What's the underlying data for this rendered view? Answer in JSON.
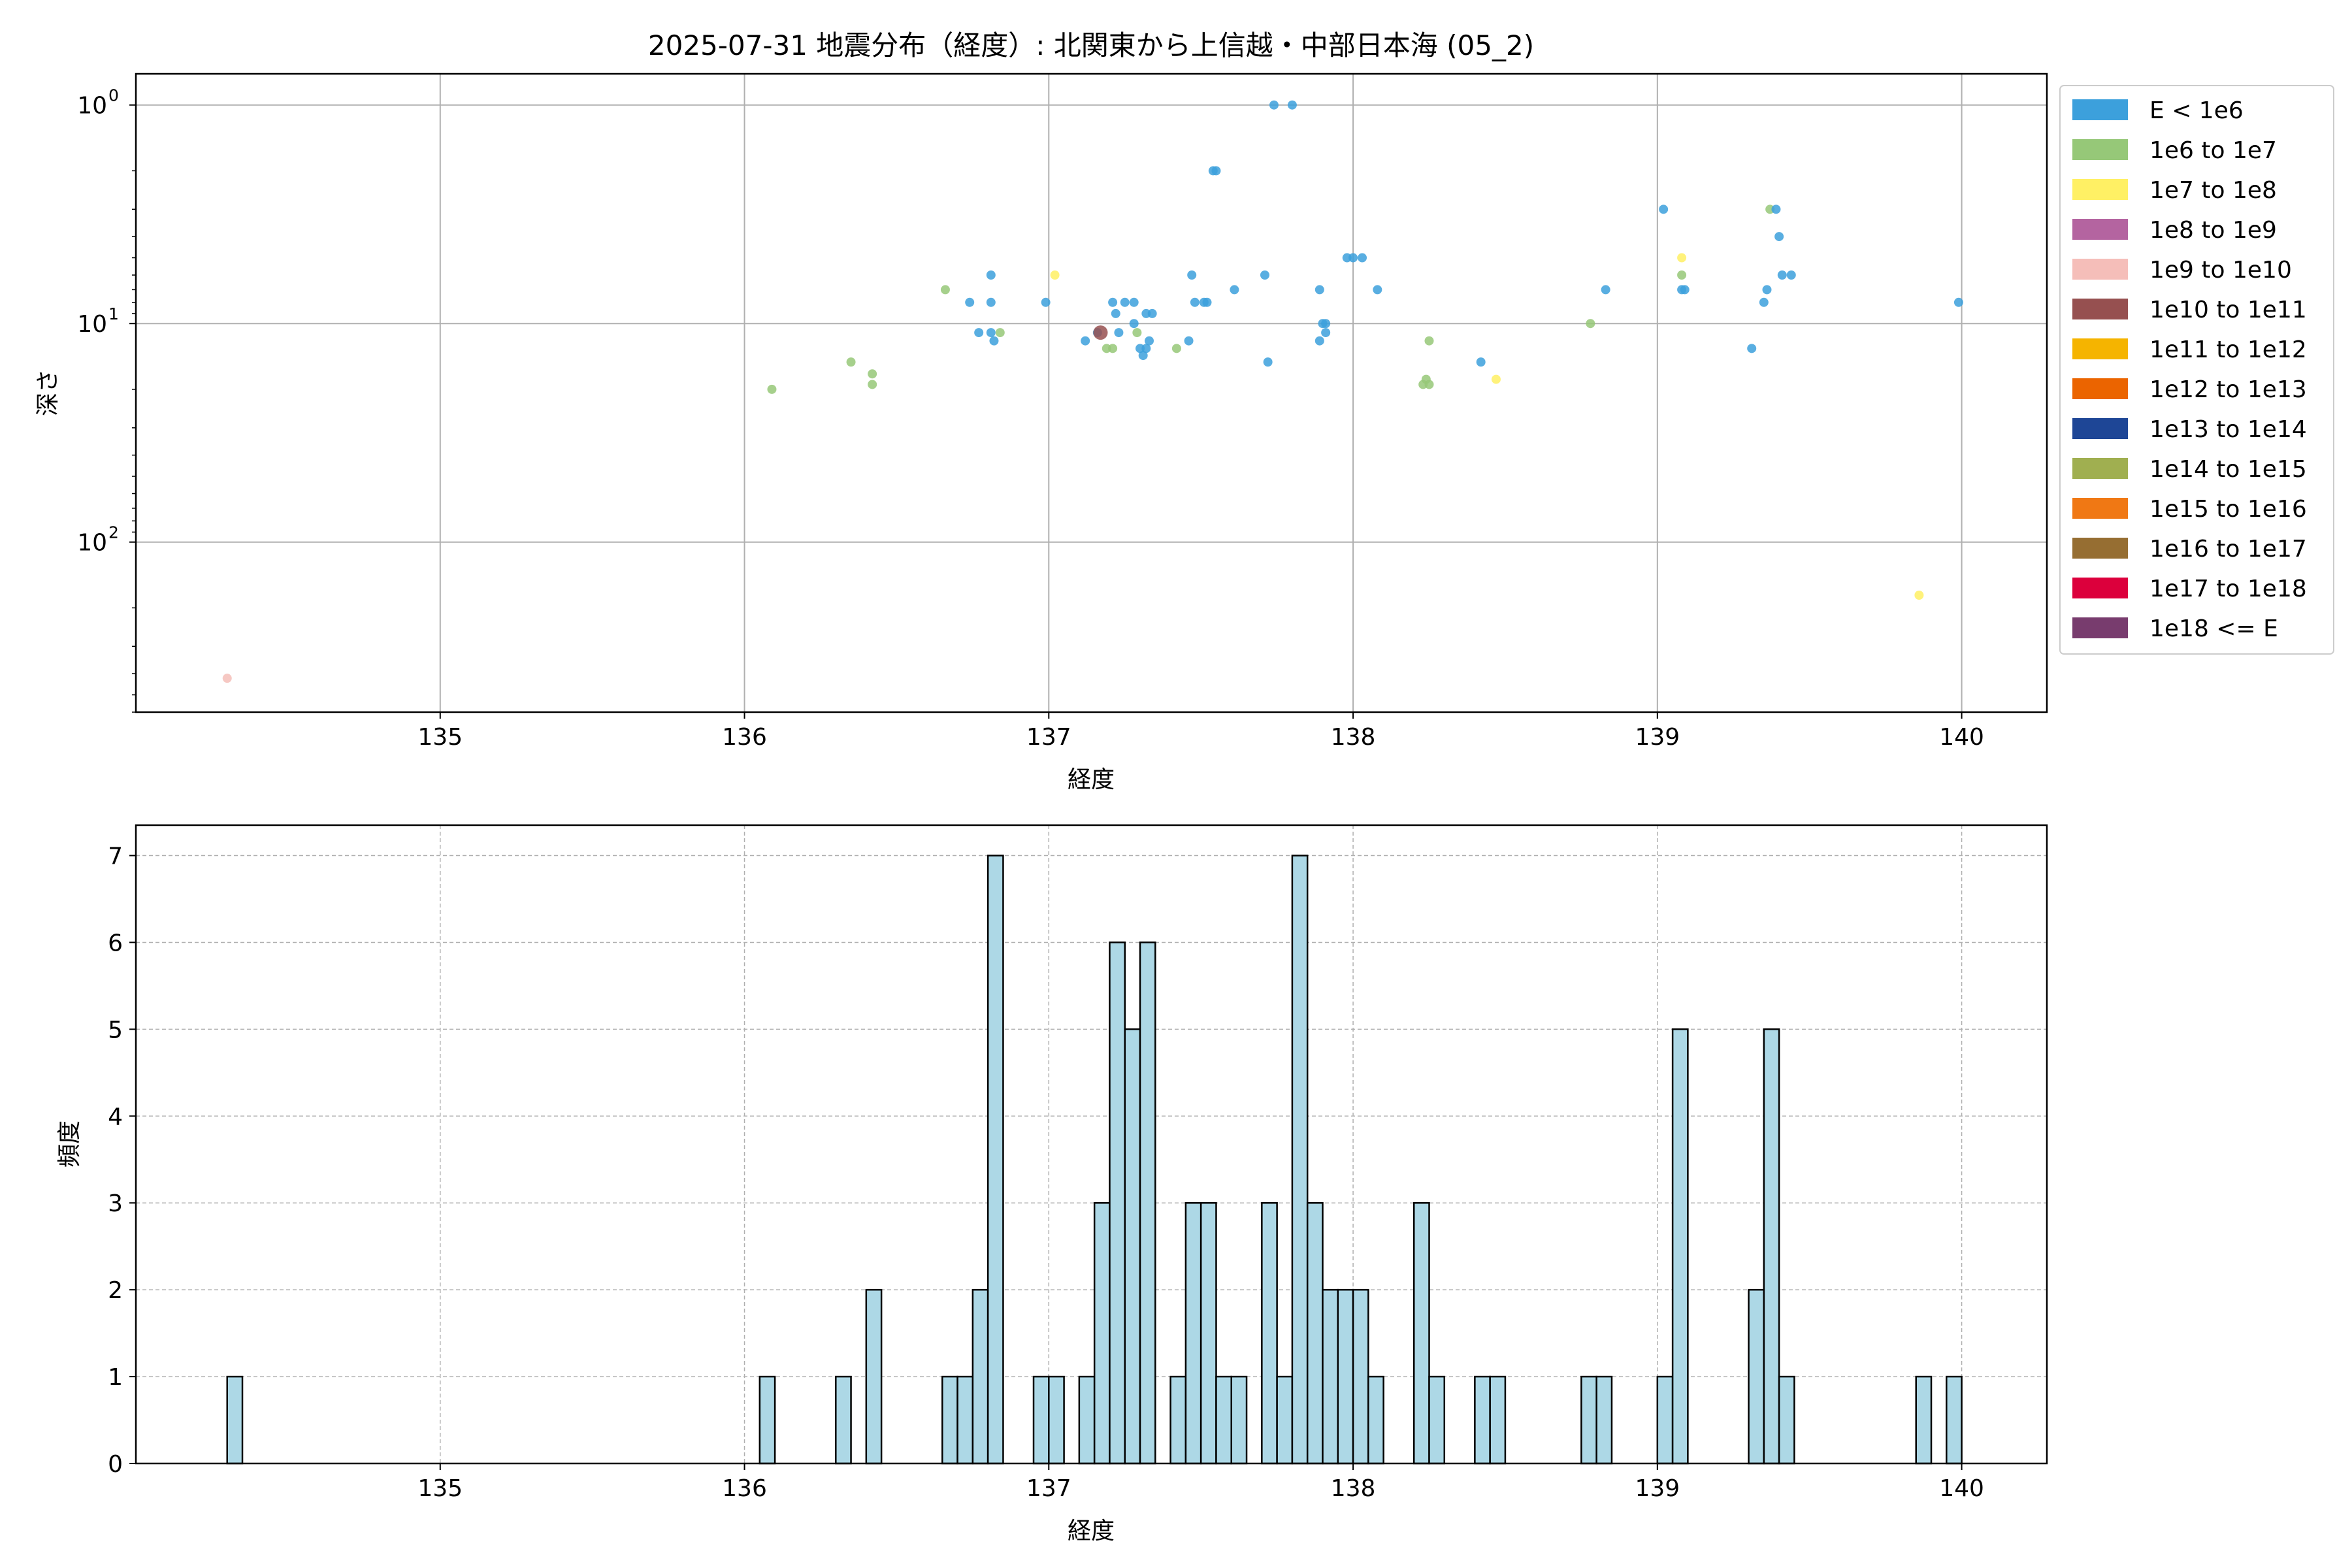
{
  "figure": {
    "title": "2025-07-31 地震分布（経度）: 北関東から上信越・中部日本海 (05_2)"
  },
  "chart_data": [
    {
      "type": "scatter",
      "xlabel": "経度",
      "ylabel": "深さ",
      "xlim": [
        134.0,
        140.28
      ],
      "yscale": "log",
      "yinverted": true,
      "ylim": [
        0.72,
        600
      ],
      "xticks": [
        135,
        136,
        137,
        138,
        139,
        140
      ],
      "xtick_labels": [
        "135",
        "136",
        "137",
        "138",
        "139",
        "140"
      ],
      "yticks": [
        1,
        10,
        100
      ],
      "ytick_labels": [
        "10",
        "10",
        "10"
      ],
      "ytick_exponents": [
        "0",
        "1",
        "2"
      ],
      "grid": true,
      "legend_position": "outside-right",
      "legend": [
        {
          "label": "E < 1e6",
          "color": "#3ca0dc"
        },
        {
          "label": "1e6 to 1e7",
          "color": "#96c878"
        },
        {
          "label": "1e7 to 1e8",
          "color": "#fff064"
        },
        {
          "label": "1e8 to 1e9",
          "color": "#b464a0"
        },
        {
          "label": "1e9 to 1e10",
          "color": "#f5beb9"
        },
        {
          "label": "1e10 to 1e11",
          "color": "#965050"
        },
        {
          "label": "1e11 to 1e12",
          "color": "#f5b400"
        },
        {
          "label": "1e12 to 1e13",
          "color": "#eb6400"
        },
        {
          "label": "1e13 to 1e14",
          "color": "#1e4696"
        },
        {
          "label": "1e14 to 1e15",
          "color": "#a0af50"
        },
        {
          "label": "1e15 to 1e16",
          "color": "#f07814"
        },
        {
          "label": "1e16 to 1e17",
          "color": "#966e32"
        },
        {
          "label": "1e17 to 1e18",
          "color": "#dc003c"
        },
        {
          "label": "1e18 <= E",
          "color": "#783c6e"
        }
      ],
      "points": [
        {
          "x": 134.3,
          "y": 420,
          "c": 4
        },
        {
          "x": 136.09,
          "y": 20,
          "c": 1
        },
        {
          "x": 136.35,
          "y": 15,
          "c": 1
        },
        {
          "x": 136.42,
          "y": 17,
          "c": 1
        },
        {
          "x": 136.42,
          "y": 19,
          "c": 1
        },
        {
          "x": 136.66,
          "y": 7,
          "c": 1
        },
        {
          "x": 136.74,
          "y": 8,
          "c": 0
        },
        {
          "x": 136.77,
          "y": 11,
          "c": 0
        },
        {
          "x": 136.81,
          "y": 6,
          "c": 0
        },
        {
          "x": 136.81,
          "y": 8,
          "c": 0
        },
        {
          "x": 136.81,
          "y": 11,
          "c": 0
        },
        {
          "x": 136.82,
          "y": 12,
          "c": 0
        },
        {
          "x": 136.84,
          "y": 11,
          "c": 1
        },
        {
          "x": 136.99,
          "y": 8,
          "c": 0
        },
        {
          "x": 137.02,
          "y": 6,
          "c": 2
        },
        {
          "x": 137.12,
          "y": 12,
          "c": 0
        },
        {
          "x": 137.16,
          "y": 11,
          "c": 0
        },
        {
          "x": 137.17,
          "y": 11,
          "c": 5
        },
        {
          "x": 137.19,
          "y": 13,
          "c": 1
        },
        {
          "x": 137.21,
          "y": 13,
          "c": 1
        },
        {
          "x": 137.21,
          "y": 8,
          "c": 0
        },
        {
          "x": 137.22,
          "y": 9,
          "c": 0
        },
        {
          "x": 137.23,
          "y": 11,
          "c": 0
        },
        {
          "x": 137.25,
          "y": 8,
          "c": 0
        },
        {
          "x": 137.28,
          "y": 8,
          "c": 0
        },
        {
          "x": 137.28,
          "y": 10,
          "c": 0
        },
        {
          "x": 137.29,
          "y": 11,
          "c": 1
        },
        {
          "x": 137.3,
          "y": 13,
          "c": 0
        },
        {
          "x": 137.31,
          "y": 14,
          "c": 0
        },
        {
          "x": 137.32,
          "y": 9,
          "c": 0
        },
        {
          "x": 137.32,
          "y": 13,
          "c": 0
        },
        {
          "x": 137.33,
          "y": 12,
          "c": 0
        },
        {
          "x": 137.34,
          "y": 9,
          "c": 0
        },
        {
          "x": 137.42,
          "y": 13,
          "c": 1
        },
        {
          "x": 137.46,
          "y": 12,
          "c": 0
        },
        {
          "x": 137.47,
          "y": 6,
          "c": 0
        },
        {
          "x": 137.48,
          "y": 8,
          "c": 0
        },
        {
          "x": 137.51,
          "y": 8,
          "c": 0
        },
        {
          "x": 137.52,
          "y": 8,
          "c": 0
        },
        {
          "x": 137.54,
          "y": 2,
          "c": 0
        },
        {
          "x": 137.55,
          "y": 2,
          "c": 0
        },
        {
          "x": 137.61,
          "y": 7,
          "c": 0
        },
        {
          "x": 137.71,
          "y": 6,
          "c": 0
        },
        {
          "x": 137.72,
          "y": 15,
          "c": 0
        },
        {
          "x": 137.74,
          "y": 1,
          "c": 0
        },
        {
          "x": 137.8,
          "y": 1,
          "c": 0
        },
        {
          "x": 137.89,
          "y": 7,
          "c": 0
        },
        {
          "x": 137.89,
          "y": 12,
          "c": 0
        },
        {
          "x": 137.9,
          "y": 10,
          "c": 0
        },
        {
          "x": 137.91,
          "y": 11,
          "c": 0
        },
        {
          "x": 137.91,
          "y": 10,
          "c": 0
        },
        {
          "x": 137.98,
          "y": 5,
          "c": 0
        },
        {
          "x": 138.0,
          "y": 5,
          "c": 0
        },
        {
          "x": 138.03,
          "y": 5,
          "c": 0
        },
        {
          "x": 138.08,
          "y": 7,
          "c": 0
        },
        {
          "x": 138.23,
          "y": 19,
          "c": 1
        },
        {
          "x": 138.24,
          "y": 18,
          "c": 1
        },
        {
          "x": 138.25,
          "y": 19,
          "c": 1
        },
        {
          "x": 138.25,
          "y": 12,
          "c": 1
        },
        {
          "x": 138.42,
          "y": 15,
          "c": 0
        },
        {
          "x": 138.47,
          "y": 18,
          "c": 2
        },
        {
          "x": 138.78,
          "y": 10,
          "c": 1
        },
        {
          "x": 138.83,
          "y": 7,
          "c": 0
        },
        {
          "x": 139.02,
          "y": 3,
          "c": 0
        },
        {
          "x": 139.08,
          "y": 5,
          "c": 2
        },
        {
          "x": 139.08,
          "y": 6,
          "c": 1
        },
        {
          "x": 139.08,
          "y": 7,
          "c": 0
        },
        {
          "x": 139.09,
          "y": 7,
          "c": 0
        },
        {
          "x": 139.31,
          "y": 13,
          "c": 0
        },
        {
          "x": 139.35,
          "y": 8,
          "c": 0
        },
        {
          "x": 139.36,
          "y": 7,
          "c": 0
        },
        {
          "x": 139.37,
          "y": 3,
          "c": 1
        },
        {
          "x": 139.39,
          "y": 3,
          "c": 0
        },
        {
          "x": 139.4,
          "y": 4,
          "c": 0
        },
        {
          "x": 139.41,
          "y": 6,
          "c": 0
        },
        {
          "x": 139.44,
          "y": 6,
          "c": 0
        },
        {
          "x": 139.86,
          "y": 175,
          "c": 2
        },
        {
          "x": 139.99,
          "y": 8,
          "c": 0
        }
      ]
    },
    {
      "type": "bar",
      "xlabel": "経度",
      "ylabel": "頻度",
      "xlim": [
        134.0,
        140.28
      ],
      "ylim": [
        0,
        7.35
      ],
      "xticks": [
        135,
        136,
        137,
        138,
        139,
        140
      ],
      "xtick_labels": [
        "135",
        "136",
        "137",
        "138",
        "139",
        "140"
      ],
      "yticks": [
        0,
        1,
        2,
        3,
        4,
        5,
        6,
        7
      ],
      "ytick_labels": [
        "0",
        "1",
        "2",
        "3",
        "4",
        "5",
        "6",
        "7"
      ],
      "grid": true,
      "bin_width": 0.05,
      "bar_color": "#add8e6",
      "bins": [
        {
          "x": 134.3,
          "count": 1
        },
        {
          "x": 136.05,
          "count": 1
        },
        {
          "x": 136.3,
          "count": 1
        },
        {
          "x": 136.4,
          "count": 2
        },
        {
          "x": 136.65,
          "count": 1
        },
        {
          "x": 136.7,
          "count": 1
        },
        {
          "x": 136.75,
          "count": 2
        },
        {
          "x": 136.8,
          "count": 7
        },
        {
          "x": 136.95,
          "count": 1
        },
        {
          "x": 137.0,
          "count": 1
        },
        {
          "x": 137.1,
          "count": 1
        },
        {
          "x": 137.15,
          "count": 3
        },
        {
          "x": 137.2,
          "count": 6
        },
        {
          "x": 137.25,
          "count": 5
        },
        {
          "x": 137.3,
          "count": 6
        },
        {
          "x": 137.4,
          "count": 1
        },
        {
          "x": 137.45,
          "count": 3
        },
        {
          "x": 137.5,
          "count": 3
        },
        {
          "x": 137.55,
          "count": 1
        },
        {
          "x": 137.6,
          "count": 1
        },
        {
          "x": 137.7,
          "count": 3
        },
        {
          "x": 137.75,
          "count": 1
        },
        {
          "x": 137.8,
          "count": 7
        },
        {
          "x": 137.85,
          "count": 3
        },
        {
          "x": 137.9,
          "count": 2
        },
        {
          "x": 137.95,
          "count": 2
        },
        {
          "x": 138.0,
          "count": 2
        },
        {
          "x": 138.05,
          "count": 1
        },
        {
          "x": 138.2,
          "count": 3
        },
        {
          "x": 138.25,
          "count": 1
        },
        {
          "x": 138.4,
          "count": 1
        },
        {
          "x": 138.45,
          "count": 1
        },
        {
          "x": 138.75,
          "count": 1
        },
        {
          "x": 138.8,
          "count": 1
        },
        {
          "x": 139.0,
          "count": 1
        },
        {
          "x": 139.05,
          "count": 5
        },
        {
          "x": 139.3,
          "count": 2
        },
        {
          "x": 139.35,
          "count": 5
        },
        {
          "x": 139.4,
          "count": 1
        },
        {
          "x": 139.85,
          "count": 1
        },
        {
          "x": 139.95,
          "count": 1
        }
      ]
    }
  ]
}
